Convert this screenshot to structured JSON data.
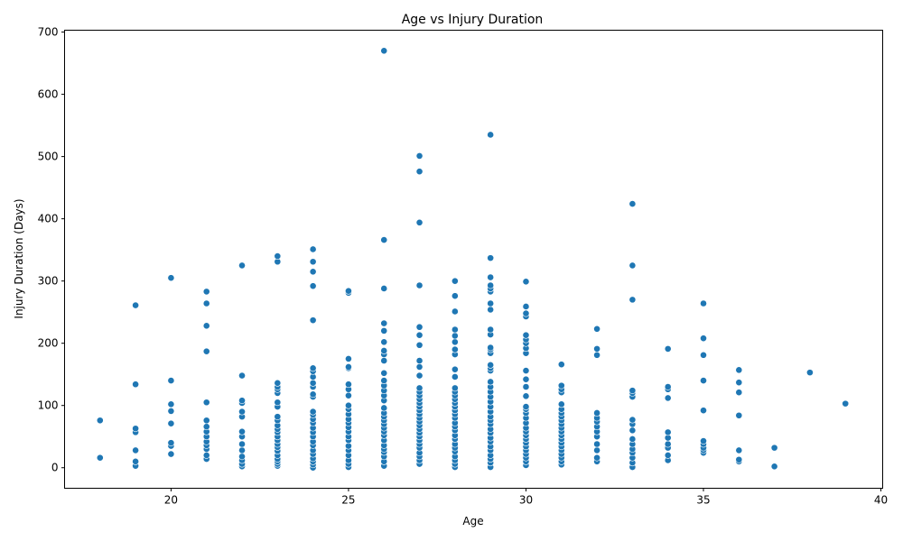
{
  "chart_data": {
    "type": "scatter",
    "title": "Age vs Injury Duration",
    "xlabel": "Age",
    "ylabel": "Injury Duration (Days)",
    "xlim": [
      17.0,
      40.05
    ],
    "ylim": [
      -33,
      703
    ],
    "xticks": [
      20,
      25,
      30,
      35,
      40
    ],
    "yticks": [
      0,
      100,
      200,
      300,
      400,
      500,
      600,
      700
    ],
    "marker_color": "#1f77b4",
    "grid": false,
    "legend": "none",
    "points": [
      [
        18,
        16
      ],
      [
        18,
        76
      ],
      [
        19,
        3
      ],
      [
        19,
        10
      ],
      [
        19,
        28
      ],
      [
        19,
        57
      ],
      [
        19,
        63
      ],
      [
        19,
        134
      ],
      [
        19,
        261
      ],
      [
        20,
        22
      ],
      [
        20,
        35
      ],
      [
        20,
        40
      ],
      [
        20,
        71
      ],
      [
        20,
        91
      ],
      [
        20,
        102
      ],
      [
        20,
        140
      ],
      [
        20,
        305
      ],
      [
        21,
        14
      ],
      [
        21,
        20
      ],
      [
        21,
        30
      ],
      [
        21,
        36
      ],
      [
        21,
        42
      ],
      [
        21,
        50
      ],
      [
        21,
        58
      ],
      [
        21,
        66
      ],
      [
        21,
        76
      ],
      [
        21,
        105
      ],
      [
        21,
        187
      ],
      [
        21,
        228
      ],
      [
        21,
        264
      ],
      [
        21,
        283
      ],
      [
        22,
        2
      ],
      [
        22,
        6
      ],
      [
        22,
        12
      ],
      [
        22,
        18
      ],
      [
        22,
        28
      ],
      [
        22,
        38
      ],
      [
        22,
        50
      ],
      [
        22,
        58
      ],
      [
        22,
        82
      ],
      [
        22,
        90
      ],
      [
        22,
        104
      ],
      [
        22,
        108
      ],
      [
        22,
        148
      ],
      [
        22,
        325
      ],
      [
        23,
        3
      ],
      [
        23,
        6
      ],
      [
        23,
        10
      ],
      [
        23,
        14
      ],
      [
        23,
        20
      ],
      [
        23,
        27
      ],
      [
        23,
        33
      ],
      [
        23,
        38
      ],
      [
        23,
        44
      ],
      [
        23,
        50
      ],
      [
        23,
        57
      ],
      [
        23,
        62
      ],
      [
        23,
        68
      ],
      [
        23,
        76
      ],
      [
        23,
        82
      ],
      [
        23,
        98
      ],
      [
        23,
        105
      ],
      [
        23,
        120
      ],
      [
        23,
        126
      ],
      [
        23,
        130
      ],
      [
        23,
        136
      ],
      [
        23,
        331
      ],
      [
        23,
        340
      ],
      [
        24,
        0
      ],
      [
        24,
        5
      ],
      [
        24,
        10
      ],
      [
        24,
        15
      ],
      [
        24,
        22
      ],
      [
        24,
        28
      ],
      [
        24,
        36
      ],
      [
        24,
        42
      ],
      [
        24,
        50
      ],
      [
        24,
        57
      ],
      [
        24,
        64
      ],
      [
        24,
        72
      ],
      [
        24,
        78
      ],
      [
        24,
        85
      ],
      [
        24,
        90
      ],
      [
        24,
        114
      ],
      [
        24,
        118
      ],
      [
        24,
        130
      ],
      [
        24,
        136
      ],
      [
        24,
        146
      ],
      [
        24,
        155
      ],
      [
        24,
        160
      ],
      [
        24,
        237
      ],
      [
        24,
        292
      ],
      [
        24,
        315
      ],
      [
        24,
        331
      ],
      [
        24,
        351
      ],
      [
        25,
        1
      ],
      [
        25,
        6
      ],
      [
        25,
        12
      ],
      [
        25,
        20
      ],
      [
        25,
        28
      ],
      [
        25,
        35
      ],
      [
        25,
        44
      ],
      [
        25,
        50
      ],
      [
        25,
        58
      ],
      [
        25,
        65
      ],
      [
        25,
        72
      ],
      [
        25,
        78
      ],
      [
        25,
        86
      ],
      [
        25,
        94
      ],
      [
        25,
        100
      ],
      [
        25,
        116
      ],
      [
        25,
        126
      ],
      [
        25,
        134
      ],
      [
        25,
        160
      ],
      [
        25,
        162
      ],
      [
        25,
        175
      ],
      [
        25,
        281
      ],
      [
        25,
        284
      ],
      [
        26,
        3
      ],
      [
        26,
        10
      ],
      [
        26,
        18
      ],
      [
        26,
        25
      ],
      [
        26,
        30
      ],
      [
        26,
        36
      ],
      [
        26,
        44
      ],
      [
        26,
        52
      ],
      [
        26,
        58
      ],
      [
        26,
        64
      ],
      [
        26,
        70
      ],
      [
        26,
        76
      ],
      [
        26,
        82
      ],
      [
        26,
        88
      ],
      [
        26,
        96
      ],
      [
        26,
        108
      ],
      [
        26,
        116
      ],
      [
        26,
        124
      ],
      [
        26,
        132
      ],
      [
        26,
        140
      ],
      [
        26,
        152
      ],
      [
        26,
        172
      ],
      [
        26,
        182
      ],
      [
        26,
        188
      ],
      [
        26,
        202
      ],
      [
        26,
        220
      ],
      [
        26,
        232
      ],
      [
        26,
        288
      ],
      [
        26,
        366
      ],
      [
        26,
        670
      ],
      [
        27,
        6
      ],
      [
        27,
        12
      ],
      [
        27,
        18
      ],
      [
        27,
        24
      ],
      [
        27,
        32
      ],
      [
        27,
        38
      ],
      [
        27,
        44
      ],
      [
        27,
        50
      ],
      [
        27,
        56
      ],
      [
        27,
        62
      ],
      [
        27,
        68
      ],
      [
        27,
        74
      ],
      [
        27,
        80
      ],
      [
        27,
        86
      ],
      [
        27,
        92
      ],
      [
        27,
        98
      ],
      [
        27,
        104
      ],
      [
        27,
        110
      ],
      [
        27,
        116
      ],
      [
        27,
        122
      ],
      [
        27,
        128
      ],
      [
        27,
        148
      ],
      [
        27,
        162
      ],
      [
        27,
        172
      ],
      [
        27,
        197
      ],
      [
        27,
        213
      ],
      [
        27,
        226
      ],
      [
        27,
        293
      ],
      [
        27,
        394
      ],
      [
        27,
        476
      ],
      [
        27,
        501
      ],
      [
        28,
        1
      ],
      [
        28,
        6
      ],
      [
        28,
        12
      ],
      [
        28,
        18
      ],
      [
        28,
        26
      ],
      [
        28,
        32
      ],
      [
        28,
        38
      ],
      [
        28,
        46
      ],
      [
        28,
        52
      ],
      [
        28,
        60
      ],
      [
        28,
        66
      ],
      [
        28,
        72
      ],
      [
        28,
        80
      ],
      [
        28,
        86
      ],
      [
        28,
        92
      ],
      [
        28,
        98
      ],
      [
        28,
        104
      ],
      [
        28,
        110
      ],
      [
        28,
        116
      ],
      [
        28,
        122
      ],
      [
        28,
        128
      ],
      [
        28,
        146
      ],
      [
        28,
        158
      ],
      [
        28,
        182
      ],
      [
        28,
        190
      ],
      [
        28,
        202
      ],
      [
        28,
        212
      ],
      [
        28,
        222
      ],
      [
        28,
        251
      ],
      [
        28,
        276
      ],
      [
        28,
        300
      ],
      [
        29,
        1
      ],
      [
        29,
        8
      ],
      [
        29,
        14
      ],
      [
        29,
        20
      ],
      [
        29,
        28
      ],
      [
        29,
        34
      ],
      [
        29,
        42
      ],
      [
        29,
        48
      ],
      [
        29,
        56
      ],
      [
        29,
        62
      ],
      [
        29,
        70
      ],
      [
        29,
        76
      ],
      [
        29,
        82
      ],
      [
        29,
        90
      ],
      [
        29,
        98
      ],
      [
        29,
        106
      ],
      [
        29,
        114
      ],
      [
        29,
        122
      ],
      [
        29,
        130
      ],
      [
        29,
        138
      ],
      [
        29,
        156
      ],
      [
        29,
        160
      ],
      [
        29,
        165
      ],
      [
        29,
        184
      ],
      [
        29,
        190
      ],
      [
        29,
        193
      ],
      [
        29,
        214
      ],
      [
        29,
        222
      ],
      [
        29,
        254
      ],
      [
        29,
        264
      ],
      [
        29,
        283
      ],
      [
        29,
        288
      ],
      [
        29,
        293
      ],
      [
        29,
        306
      ],
      [
        29,
        337
      ],
      [
        29,
        535
      ],
      [
        30,
        4
      ],
      [
        30,
        10
      ],
      [
        30,
        16
      ],
      [
        30,
        22
      ],
      [
        30,
        28
      ],
      [
        30,
        34
      ],
      [
        30,
        40
      ],
      [
        30,
        46
      ],
      [
        30,
        52
      ],
      [
        30,
        58
      ],
      [
        30,
        64
      ],
      [
        30,
        72
      ],
      [
        30,
        80
      ],
      [
        30,
        88
      ],
      [
        30,
        94
      ],
      [
        30,
        98
      ],
      [
        30,
        115
      ],
      [
        30,
        130
      ],
      [
        30,
        142
      ],
      [
        30,
        156
      ],
      [
        30,
        184
      ],
      [
        30,
        192
      ],
      [
        30,
        200
      ],
      [
        30,
        206
      ],
      [
        30,
        213
      ],
      [
        30,
        243
      ],
      [
        30,
        248
      ],
      [
        30,
        259
      ],
      [
        30,
        299
      ],
      [
        31,
        5
      ],
      [
        31,
        10
      ],
      [
        31,
        16
      ],
      [
        31,
        22
      ],
      [
        31,
        28
      ],
      [
        31,
        34
      ],
      [
        31,
        40
      ],
      [
        31,
        46
      ],
      [
        31,
        52
      ],
      [
        31,
        58
      ],
      [
        31,
        64
      ],
      [
        31,
        70
      ],
      [
        31,
        76
      ],
      [
        31,
        82
      ],
      [
        31,
        88
      ],
      [
        31,
        94
      ],
      [
        31,
        102
      ],
      [
        31,
        121
      ],
      [
        31,
        126
      ],
      [
        31,
        132
      ],
      [
        31,
        166
      ],
      [
        32,
        10
      ],
      [
        32,
        16
      ],
      [
        32,
        28
      ],
      [
        32,
        38
      ],
      [
        32,
        50
      ],
      [
        32,
        58
      ],
      [
        32,
        66
      ],
      [
        32,
        74
      ],
      [
        32,
        80
      ],
      [
        32,
        88
      ],
      [
        32,
        181
      ],
      [
        32,
        191
      ],
      [
        32,
        223
      ],
      [
        33,
        1
      ],
      [
        33,
        8
      ],
      [
        33,
        16
      ],
      [
        33,
        24
      ],
      [
        33,
        30
      ],
      [
        33,
        38
      ],
      [
        33,
        46
      ],
      [
        33,
        60
      ],
      [
        33,
        70
      ],
      [
        33,
        77
      ],
      [
        33,
        114
      ],
      [
        33,
        120
      ],
      [
        33,
        124
      ],
      [
        33,
        270
      ],
      [
        33,
        325
      ],
      [
        33,
        424
      ],
      [
        34,
        12
      ],
      [
        34,
        20
      ],
      [
        34,
        32
      ],
      [
        34,
        38
      ],
      [
        34,
        48
      ],
      [
        34,
        57
      ],
      [
        34,
        112
      ],
      [
        34,
        126
      ],
      [
        34,
        130
      ],
      [
        34,
        191
      ],
      [
        35,
        24
      ],
      [
        35,
        28
      ],
      [
        35,
        32
      ],
      [
        35,
        38
      ],
      [
        35,
        43
      ],
      [
        35,
        92
      ],
      [
        35,
        140
      ],
      [
        35,
        181
      ],
      [
        35,
        208
      ],
      [
        35,
        264
      ],
      [
        36,
        10
      ],
      [
        36,
        13
      ],
      [
        36,
        28
      ],
      [
        36,
        84
      ],
      [
        36,
        121
      ],
      [
        36,
        137
      ],
      [
        36,
        157
      ],
      [
        37,
        2
      ],
      [
        37,
        32
      ],
      [
        38,
        153
      ],
      [
        39,
        103
      ]
    ]
  }
}
